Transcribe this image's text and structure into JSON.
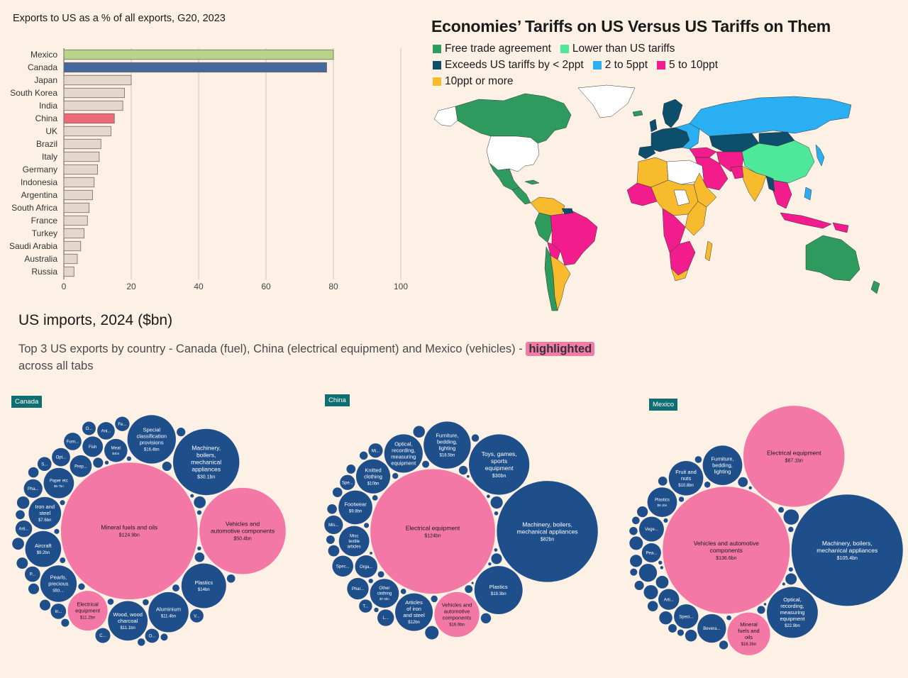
{
  "chart_data": [
    {
      "type": "bar",
      "title": "Exports to US as a % of all exports, G20, 2023",
      "categories": [
        "Mexico",
        "Canada",
        "Japan",
        "South Korea",
        "India",
        "China",
        "UK",
        "Brazil",
        "Italy",
        "Germany",
        "Indonesia",
        "Argentina",
        "South Africa",
        "France",
        "Turkey",
        "Saudi Arabia",
        "Australia",
        "Russia"
      ],
      "values": [
        80,
        78,
        20,
        18,
        17.5,
        15,
        14,
        11,
        10.5,
        10,
        9,
        8.5,
        7.5,
        7,
        6,
        5,
        4,
        3
      ],
      "highlight_colors": {
        "Mexico": "#b9d38a",
        "Canada": "#44689a",
        "China": "#ee6a76",
        "default": "#e4d6cb"
      },
      "xlim": [
        0,
        100
      ],
      "xticks": [
        "0",
        "20",
        "40",
        "60",
        "80",
        "100"
      ],
      "grid": true
    },
    {
      "type": "bubble",
      "title": "US imports, 2024 ($bn)",
      "subtitle_before": "Top 3 US exports by country - Canada (fuel), China (electrical equipment) and Mexico (vehicles) -",
      "subtitle_highlight": "highlighted",
      "subtitle_after": "across all tabs",
      "colors": {
        "highlight": "#f478a6",
        "default": "#1f4f8b"
      },
      "panels": [
        {
          "tab": "Canada",
          "labeled": [
            {
              "name": "Mineral fuels and oils",
              "value": "$124.9bn",
              "v": 124.9,
              "hl": true
            },
            {
              "name": "Vehicles and automotive components",
              "value": "$50.4bn",
              "v": 50.4,
              "hl": true
            },
            {
              "name": "Machinery, boilers, mechanical appliances",
              "value": "$30.1bn",
              "v": 30.1
            },
            {
              "name": "Special classification provisions",
              "value": "$16.4bn",
              "v": 16.4
            },
            {
              "name": "Plastics",
              "value": "$14bn",
              "v": 14
            },
            {
              "name": "Aluminium",
              "value": "$11.4bn",
              "v": 11.4
            },
            {
              "name": "Wood, wood charcoal",
              "value": "$11.1bn",
              "v": 11.1
            },
            {
              "name": "Electrical equipment",
              "value": "$11.2bn",
              "v": 11.2,
              "hl": true
            },
            {
              "name": "Pearls, precious sto...",
              "value": "",
              "v": 9.5
            },
            {
              "name": "Aircraft",
              "value": "$9.2bn",
              "v": 9.2
            },
            {
              "name": "Iron and steel",
              "value": "$7.6bn",
              "v": 7.6
            },
            {
              "name": "Paper etc",
              "value": "$6.7bn",
              "v": 6.7
            },
            {
              "name": "Meat",
              "value": "$4bn",
              "v": 4
            },
            {
              "name": "Prep...",
              "value": "",
              "v": 3.6
            },
            {
              "name": "Fish",
              "value": "",
              "v": 3.2
            },
            {
              "name": "Opt...",
              "value": "",
              "v": 2.6
            },
            {
              "name": "Ani...",
              "value": "",
              "v": 2.4
            },
            {
              "name": "Pha...",
              "value": "",
              "v": 2.7
            },
            {
              "name": "Furn...",
              "value": "",
              "v": 2.4
            },
            {
              "name": "Arti...",
              "value": "",
              "v": 2.2
            },
            {
              "name": "P...",
              "value": "",
              "v": 1.9
            },
            {
              "name": "In...",
              "value": "",
              "v": 1.9
            },
            {
              "name": "C...",
              "value": "",
              "v": 1.8
            },
            {
              "name": "Fe...",
              "value": "",
              "v": 1.7
            },
            {
              "name": "O...",
              "value": "",
              "v": 1.6
            },
            {
              "name": "S...",
              "value": "",
              "v": 1.6
            },
            {
              "name": "V...",
              "value": "",
              "v": 1.5
            },
            {
              "name": "O...",
              "value": "",
              "v": 1.5
            }
          ],
          "small_values": [
            1.3,
            1.2,
            1.2,
            1.1,
            1.0,
            1.0,
            0.95,
            0.9,
            0.85,
            0.8,
            0.75,
            0.7,
            0.65,
            0.6,
            0.55,
            0.5,
            0.5,
            0.45,
            0.4,
            0.4,
            0.35,
            0.3,
            0.3,
            0.25,
            0.25,
            0.2,
            0.2,
            0.18
          ]
        },
        {
          "tab": "China",
          "labeled": [
            {
              "name": "Electrical equipment",
              "value": "$124bn",
              "v": 124,
              "hl": true
            },
            {
              "name": "Machinery, boilers, mechanical appliances",
              "value": "$82bn",
              "v": 82
            },
            {
              "name": "Toys, games, sports equipment",
              "value": "$30bn",
              "v": 30
            },
            {
              "name": "Plastics",
              "value": "$19.3bn",
              "v": 19.3
            },
            {
              "name": "Furniture, bedding, lighting",
              "value": "$18.5bn",
              "v": 18.5
            },
            {
              "name": "Vehicles and automotive components",
              "value": "$16.9bn",
              "v": 16.9,
              "hl": true
            },
            {
              "name": "Articles of iron and steel",
              "value": "$12bn",
              "v": 12
            },
            {
              "name": "Optical, recording, measuring equipment",
              "value": "",
              "v": 12.5
            },
            {
              "name": "Knitted clothing",
              "value": "$10bn",
              "v": 10
            },
            {
              "name": "Footwear",
              "value": "$9.8bn",
              "v": 9.8
            },
            {
              "name": "Misc textile articles",
              "value": "",
              "v": 8
            },
            {
              "name": "Other clothing",
              "value": "$7.3bn",
              "v": 7.3
            },
            {
              "name": "Orga...",
              "value": "",
              "v": 4.5
            },
            {
              "name": "Phar...",
              "value": "",
              "v": 4.2
            },
            {
              "name": "Spec...",
              "value": "",
              "v": 4
            },
            {
              "name": "Mis...",
              "value": "",
              "v": 3.2
            },
            {
              "name": "L...",
              "value": "",
              "v": 2.6
            },
            {
              "name": "Spe...",
              "value": "",
              "v": 2.2
            },
            {
              "name": "Mi...",
              "value": "",
              "v": 2
            },
            {
              "name": "T...",
              "value": "",
              "v": 1.7
            }
          ],
          "small_values": [
            1.8,
            1.5,
            1.4,
            1.3,
            1.2,
            1.1,
            1.0,
            1.0,
            0.9,
            0.85,
            0.8,
            0.75,
            0.7,
            0.65,
            0.6,
            0.55,
            0.5,
            0.45,
            0.4,
            0.4,
            0.35,
            0.3,
            0.3,
            0.25,
            0.2,
            0.2,
            0.18,
            0.15,
            0.15,
            0.12
          ]
        },
        {
          "tab": "Mexico",
          "labeled": [
            {
              "name": "Vehicles and automotive components",
              "value": "$136.6bn",
              "v": 136.6,
              "hl": true
            },
            {
              "name": "Machinery, boilers, mechanical appliances",
              "value": "$105.4bn",
              "v": 105.4
            },
            {
              "name": "Electrical equipment",
              "value": "$87.1bn",
              "v": 87.1,
              "hl": true
            },
            {
              "name": "Optical, recording, measuring equipment",
              "value": "$22.9bn",
              "v": 22.9
            },
            {
              "name": "Mineral fuels and oils",
              "value": "$16.3bn",
              "v": 16.3,
              "hl": true
            },
            {
              "name": "Furniture, bedding, lighting",
              "value": "",
              "v": 14
            },
            {
              "name": "Fruit and nuts",
              "value": "$10.8bn",
              "v": 10.8
            },
            {
              "name": "Plastics",
              "value": "$8.1bn",
              "v": 8.1
            },
            {
              "name": "Bevera...",
              "value": "",
              "v": 7.6
            },
            {
              "name": "Vege...",
              "value": "",
              "v": 5.8
            },
            {
              "name": "Speci...",
              "value": "",
              "v": 5.6
            },
            {
              "name": "Arti...",
              "value": "",
              "v": 4.2
            },
            {
              "name": "Pea...",
              "value": "",
              "v": 3.6
            },
            {
              "name": "I...",
              "value": "",
              "v": 1.7
            }
          ],
          "small_values": [
            3.2,
            2.4,
            2.1,
            1.9,
            1.8,
            1.6,
            1.5,
            1.4,
            1.3,
            1.2,
            1.1,
            1.0,
            0.95,
            0.9,
            0.85,
            0.8,
            0.75,
            0.7,
            0.65,
            0.6,
            0.55,
            0.5,
            0.45,
            0.4,
            0.4,
            0.35,
            0.3,
            0.3,
            0.25,
            0.2,
            0.2,
            0.18,
            0.15
          ]
        }
      ]
    }
  ],
  "map": {
    "title": "Economies’ Tariffs on US Versus US Tariffs on Them",
    "legend": [
      {
        "label": "Free trade agreement",
        "color": "#2e9a5e"
      },
      {
        "label": "Lower than US tariffs",
        "color": "#4ee89a"
      },
      {
        "label": "Exceeds US tariffs by < 2ppt",
        "color": "#0d4e6c"
      },
      {
        "label": "2 to 5ppt",
        "color": "#29aff2"
      },
      {
        "label": "5 to 10ppt",
        "color": "#f21c8c"
      },
      {
        "label": "10ppt or more",
        "color": "#f7bb2d"
      }
    ],
    "no_data_color": "#ffffff"
  }
}
